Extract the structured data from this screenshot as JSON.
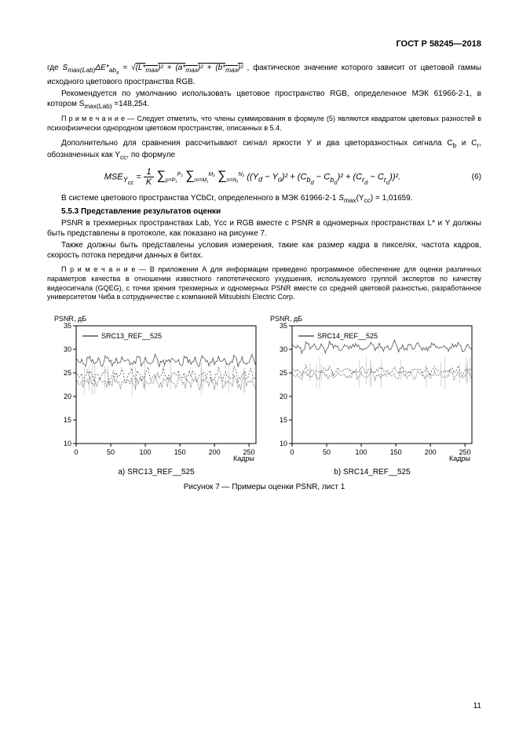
{
  "header": {
    "doc": "ГОСТ Р 58245—2018"
  },
  "para1_pre": "где ",
  "para1_post": ", фактическое значение которого зависит от цветовой гаммы исходного цветового пространства RGB.",
  "para2": "Рекомендуется по умолчанию использовать цветовое пространство RGB, определенное МЭК 61966-2-1, в котором S",
  "para2_sub": "max(Lab)",
  "para2_tail": " =148,254.",
  "note1": "П р и м е ч а н и е  — Следует отметить, что члены суммирования в формуле (5) являются квадратом цветовых разностей в психофизически однородном цветовом пространстве, описанных в 5.4.",
  "para3a": "Дополнительно для сравнения рассчитывают сигнал яркости ",
  "para3b": " и два цветоразностных сигнала С",
  "para3c": " и С",
  "para3d": ", обозначенных как Y",
  "para3e": ", по формуле",
  "formula6_num": "(6)",
  "para4a": "В системе цветового пространства YCbCr, определенного в МЭК 61966-2-1 ",
  "para4b": " = 1,01659.",
  "heading553": "5.5.3 Представление результатов оценки",
  "para5": "PSNR в трехмерных пространствах Lab, Yсс и RGB вместе с PSNR в одномерных пространствах L* и Y должны быть представлены в протоколе, как показано на рисунке 7.",
  "para6": "Также должны быть представлены условия измерения, такие как размер кадра в пикселях, частота кадров, скорость потока передачи данных в битах.",
  "note2": "П р и м е ч а н и е  — В приложении А для информации приведено программное обеспечение для оценки различных параметров качества в отношении известного гипотетического ухудшения, используемого группой экспертов по качеству видеосигнала (GQEG), с точки зрения трехмерных и одномерных PSNR вместе со средней цветовой разностью, разработанное университетом Чиба в сотрудничестве с компанией Mitsubishi Electric Corp.",
  "charts": {
    "ylabel": "PSNR, дБ",
    "xlabel": "Кадры",
    "xlim": [
      0,
      260
    ],
    "ylim": [
      10,
      35
    ],
    "xticks": [
      0,
      50,
      100,
      150,
      200,
      250
    ],
    "yticks": [
      10,
      15,
      20,
      25,
      30,
      35
    ],
    "grid_color": "#000000",
    "axis_color": "#000000",
    "line_color": "#555555",
    "left": {
      "title": "SRC13_REF__525",
      "sub": "a) SRC13_REF__525",
      "series1": {
        "base": 27.5,
        "amp": 1.2,
        "freq": 0.45,
        "noise": 0.8
      },
      "series2": {
        "base": 24.5,
        "amp": 1.5,
        "freq": 0.5,
        "noise": 1.0
      },
      "series3": {
        "base": 23.0,
        "amp": 1.4,
        "freq": 0.55,
        "noise": 1.1
      }
    },
    "right": {
      "title": "SRC14_REF__525",
      "sub": "b) SRC14_REF__525",
      "series1": {
        "base": 30.5,
        "amp": 1.0,
        "freq": 0.35,
        "noise": 0.7
      },
      "series2": {
        "base": 25.5,
        "amp": 0.8,
        "freq": 0.4,
        "noise": 0.6
      },
      "series3": {
        "base": 24.5,
        "amp": 0.9,
        "freq": 0.45,
        "noise": 0.7
      }
    }
  },
  "fig_caption": "Рисунок 7 — Примеры оценки PSNR, лист 1",
  "page_num": "11",
  "style": {
    "body_font_size": 10,
    "note_font_size": 9,
    "text_color": "#000000",
    "bg_color": "#ffffff"
  }
}
